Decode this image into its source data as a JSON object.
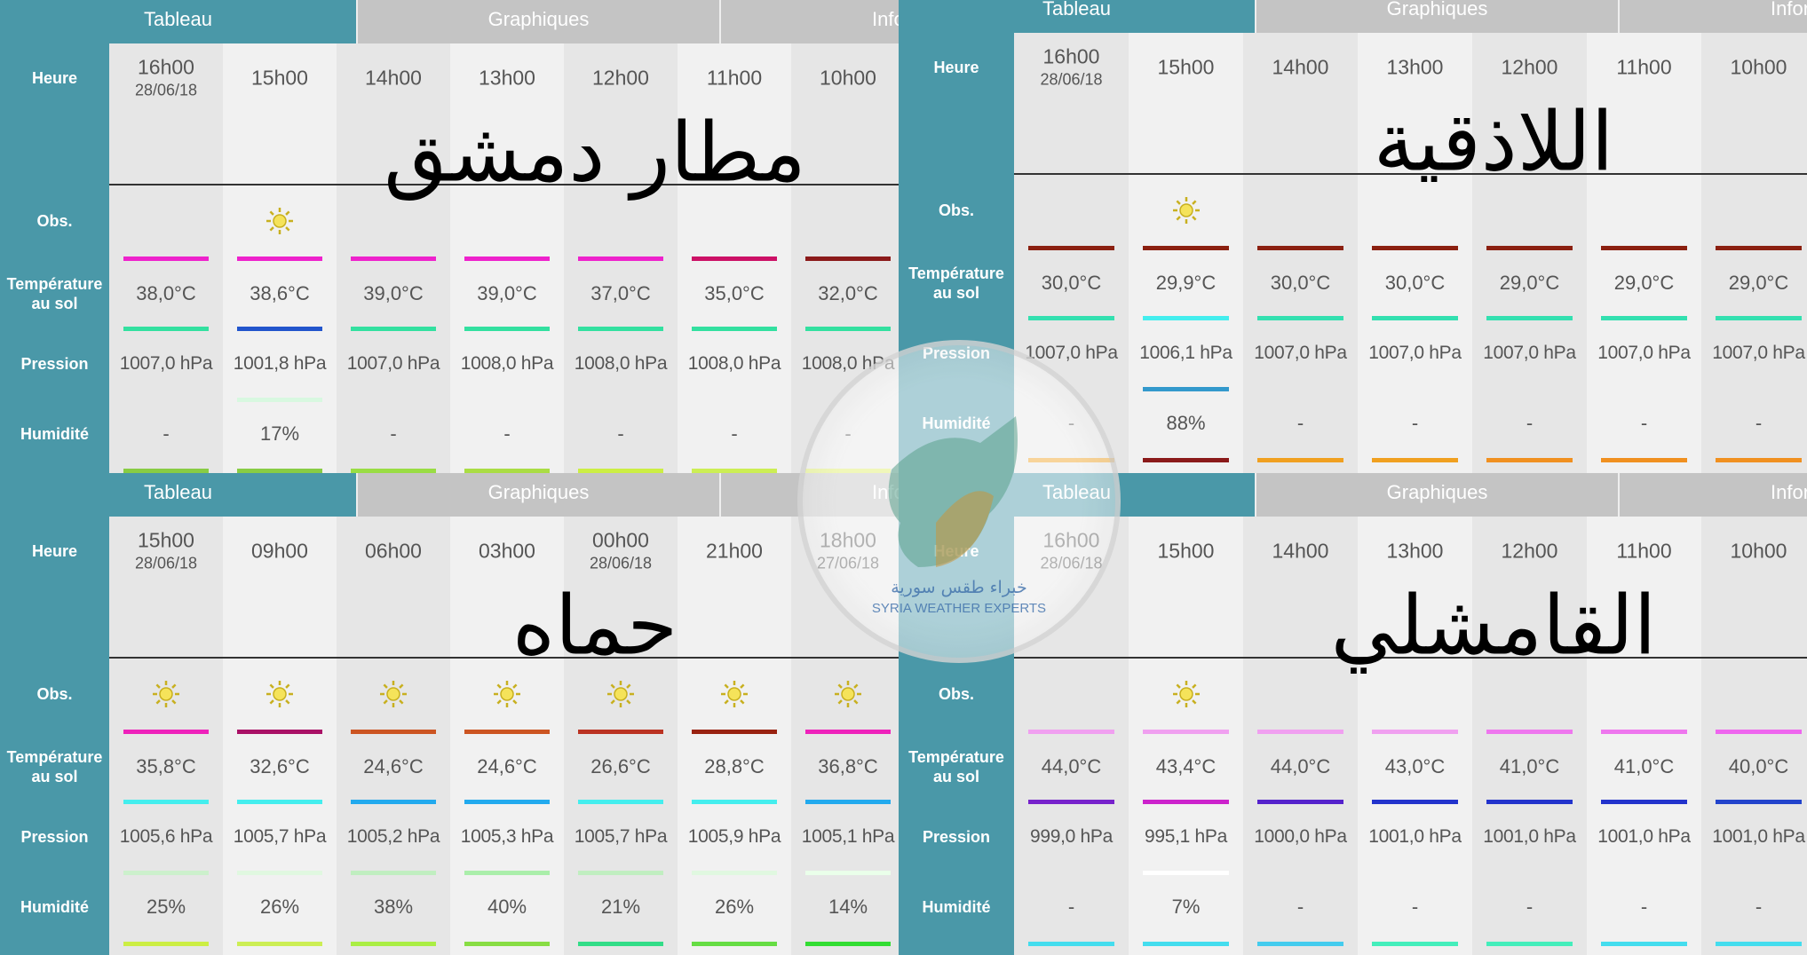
{
  "row_labels": [
    "Heure",
    "Obs.",
    "Température au sol",
    "Pression",
    "Humidité"
  ],
  "watermark": {
    "arabic": "خبراء طقس سورية",
    "english": "SYRIA WEATHER EXPERTS"
  },
  "panels": [
    {
      "city": "مطار دمشق",
      "tabs": [
        "Tableau",
        "Graphiques",
        "Inform"
      ],
      "columns": [
        {
          "time": "16h00",
          "date": "28/06/18",
          "obs": null,
          "temperature": "38,0°C",
          "pressure": "1007,0 hPa",
          "humidity": "-",
          "lines": [
            "#ee22cc",
            "#33e0a0",
            null,
            "#88cc44"
          ]
        },
        {
          "time": "15h00",
          "obs": "sun",
          "temperature": "38,6°C",
          "pressure": "1001,8 hPa",
          "humidity": "17%",
          "lines": [
            "#ee22cc",
            "#2255cc",
            "#d8f8e0",
            "#88cc44"
          ]
        },
        {
          "time": "14h00",
          "obs": null,
          "temperature": "39,0°C",
          "pressure": "1007,0 hPa",
          "humidity": "-",
          "lines": [
            "#ee22cc",
            "#33e0a0",
            null,
            "#99dd44"
          ]
        },
        {
          "time": "13h00",
          "obs": null,
          "temperature": "39,0°C",
          "pressure": "1008,0 hPa",
          "humidity": "-",
          "lines": [
            "#ee22cc",
            "#33e0a0",
            null,
            "#aadd44"
          ]
        },
        {
          "time": "12h00",
          "obs": null,
          "temperature": "37,0°C",
          "pressure": "1008,0 hPa",
          "humidity": "-",
          "lines": [
            "#ee22cc",
            "#33e0a0",
            null,
            "#ccee44"
          ]
        },
        {
          "time": "11h00",
          "obs": null,
          "temperature": "35,0°C",
          "pressure": "1008,0 hPa",
          "humidity": "-",
          "lines": [
            "#cc1166",
            "#33e0a0",
            null,
            "#ccee55"
          ]
        },
        {
          "time": "10h00",
          "obs": null,
          "temperature": "32,0°C",
          "pressure": "1008,0 hPa",
          "humidity": "-",
          "lines": [
            "#8b1a1a",
            "#33e0a0",
            null,
            "#ddee66"
          ]
        }
      ]
    },
    {
      "city": "اللاذقية",
      "tabs": [
        "Tableau",
        "Graphiques",
        "Inform"
      ],
      "columns": [
        {
          "time": "16h00",
          "date": "28/06/18",
          "obs": null,
          "temperature": "30,0°C",
          "pressure": "1007,0 hPa",
          "humidity": "-",
          "lines": [
            "#8b2010",
            "#33e0b0",
            null,
            "#f0a020"
          ]
        },
        {
          "time": "15h00",
          "obs": "sun",
          "temperature": "29,9°C",
          "pressure": "1006,1 hPa",
          "humidity": "88%",
          "lines": [
            "#8b2010",
            "#44eeee",
            "#3399cc",
            "#8b1a1a"
          ]
        },
        {
          "time": "14h00",
          "obs": null,
          "temperature": "30,0°C",
          "pressure": "1007,0 hPa",
          "humidity": "-",
          "lines": [
            "#8b2010",
            "#33e0b0",
            null,
            "#f0a020"
          ]
        },
        {
          "time": "13h00",
          "obs": null,
          "temperature": "30,0°C",
          "pressure": "1007,0 hPa",
          "humidity": "-",
          "lines": [
            "#8b2010",
            "#33e0b0",
            null,
            "#f0a020"
          ]
        },
        {
          "time": "12h00",
          "obs": null,
          "temperature": "29,0°C",
          "pressure": "1007,0 hPa",
          "humidity": "-",
          "lines": [
            "#8b2010",
            "#33e0b0",
            null,
            "#f09020"
          ]
        },
        {
          "time": "11h00",
          "obs": null,
          "temperature": "29,0°C",
          "pressure": "1007,0 hPa",
          "humidity": "-",
          "lines": [
            "#8b2010",
            "#33e0b0",
            null,
            "#f09020"
          ]
        },
        {
          "time": "10h00",
          "obs": null,
          "temperature": "29,0°C",
          "pressure": "1007,0 hPa",
          "humidity": "-",
          "lines": [
            "#8b2010",
            "#33e0b0",
            null,
            "#f09020"
          ]
        }
      ]
    },
    {
      "city": "حماه",
      "tabs": [
        "Tableau",
        "Graphiques",
        "Inform"
      ],
      "columns": [
        {
          "time": "15h00",
          "date": "28/06/18",
          "obs": "sun",
          "temperature": "35,8°C",
          "pressure": "1005,6 hPa",
          "humidity": "25%",
          "lines": [
            "#ee22bb",
            "#44eeee",
            "#ccf0cc",
            "#ccee44"
          ]
        },
        {
          "time": "09h00",
          "obs": "sun",
          "temperature": "32,6°C",
          "pressure": "1005,7 hPa",
          "humidity": "26%",
          "lines": [
            "#aa1166",
            "#44eeee",
            "#e0f8e0",
            "#ccee55"
          ]
        },
        {
          "time": "06h00",
          "obs": "sun",
          "temperature": "24,6°C",
          "pressure": "1005,2 hPa",
          "humidity": "38%",
          "lines": [
            "#cc5522",
            "#22aaee",
            "#c0eec0",
            "#aaee44"
          ]
        },
        {
          "time": "03h00",
          "obs": "sun",
          "temperature": "24,6°C",
          "pressure": "1005,3 hPa",
          "humidity": "40%",
          "lines": [
            "#cc5522",
            "#22aaee",
            "#aaeeaa",
            "#88dd44"
          ]
        },
        {
          "time": "00h00",
          "date": "28/06/18",
          "obs": "sun",
          "temperature": "26,6°C",
          "pressure": "1005,7 hPa",
          "humidity": "21%",
          "lines": [
            "#bb3322",
            "#44eeee",
            "#c0eec0",
            "#33dd88"
          ]
        },
        {
          "time": "21h00",
          "obs": "sun",
          "temperature": "28,8°C",
          "pressure": "1005,9 hPa",
          "humidity": "26%",
          "lines": [
            "#992211",
            "#44eeee",
            "#e0f8e0",
            "#66dd44"
          ]
        },
        {
          "time": "18h00",
          "date": "27/06/18",
          "obs": "sun",
          "temperature": "36,8°C",
          "pressure": "1005,1 hPa",
          "humidity": "14%",
          "lines": [
            "#ee22bb",
            "#22aaee",
            "#eaffea",
            "#33dd33"
          ]
        }
      ]
    },
    {
      "city": "القامشلي",
      "tabs": [
        "Tableau",
        "Graphiques",
        "Inform"
      ],
      "columns": [
        {
          "time": "16h00",
          "date": "28/06/18",
          "obs": null,
          "temperature": "44,0°C",
          "pressure": "999,0 hPa",
          "humidity": "-",
          "lines": [
            "#f0a0f0",
            "#7722cc",
            null,
            "#44ddee"
          ]
        },
        {
          "time": "15h00",
          "obs": "sun",
          "temperature": "43,4°C",
          "pressure": "995,1 hPa",
          "humidity": "7%",
          "lines": [
            "#f0a0f0",
            "#cc22cc",
            "#ffffff",
            "#44ddee"
          ]
        },
        {
          "time": "14h00",
          "obs": null,
          "temperature": "44,0°C",
          "pressure": "1000,0 hPa",
          "humidity": "-",
          "lines": [
            "#f0a0f0",
            "#5522cc",
            null,
            "#44ccee"
          ]
        },
        {
          "time": "13h00",
          "obs": null,
          "temperature": "43,0°C",
          "pressure": "1001,0 hPa",
          "humidity": "-",
          "lines": [
            "#f0a0f0",
            "#2233cc",
            null,
            "#44eebb"
          ]
        },
        {
          "time": "12h00",
          "obs": null,
          "temperature": "41,0°C",
          "pressure": "1001,0 hPa",
          "humidity": "-",
          "lines": [
            "#ee77ee",
            "#2233cc",
            null,
            "#44eebb"
          ]
        },
        {
          "time": "11h00",
          "obs": null,
          "temperature": "41,0°C",
          "pressure": "1001,0 hPa",
          "humidity": "-",
          "lines": [
            "#ee77ee",
            "#2233cc",
            null,
            "#44ddee"
          ]
        },
        {
          "time": "10h00",
          "obs": null,
          "temperature": "40,0°C",
          "pressure": "1001,0 hPa",
          "humidity": "-",
          "lines": [
            "#ee66ee",
            "#2244cc",
            null,
            "#44ddee"
          ]
        }
      ]
    }
  ]
}
